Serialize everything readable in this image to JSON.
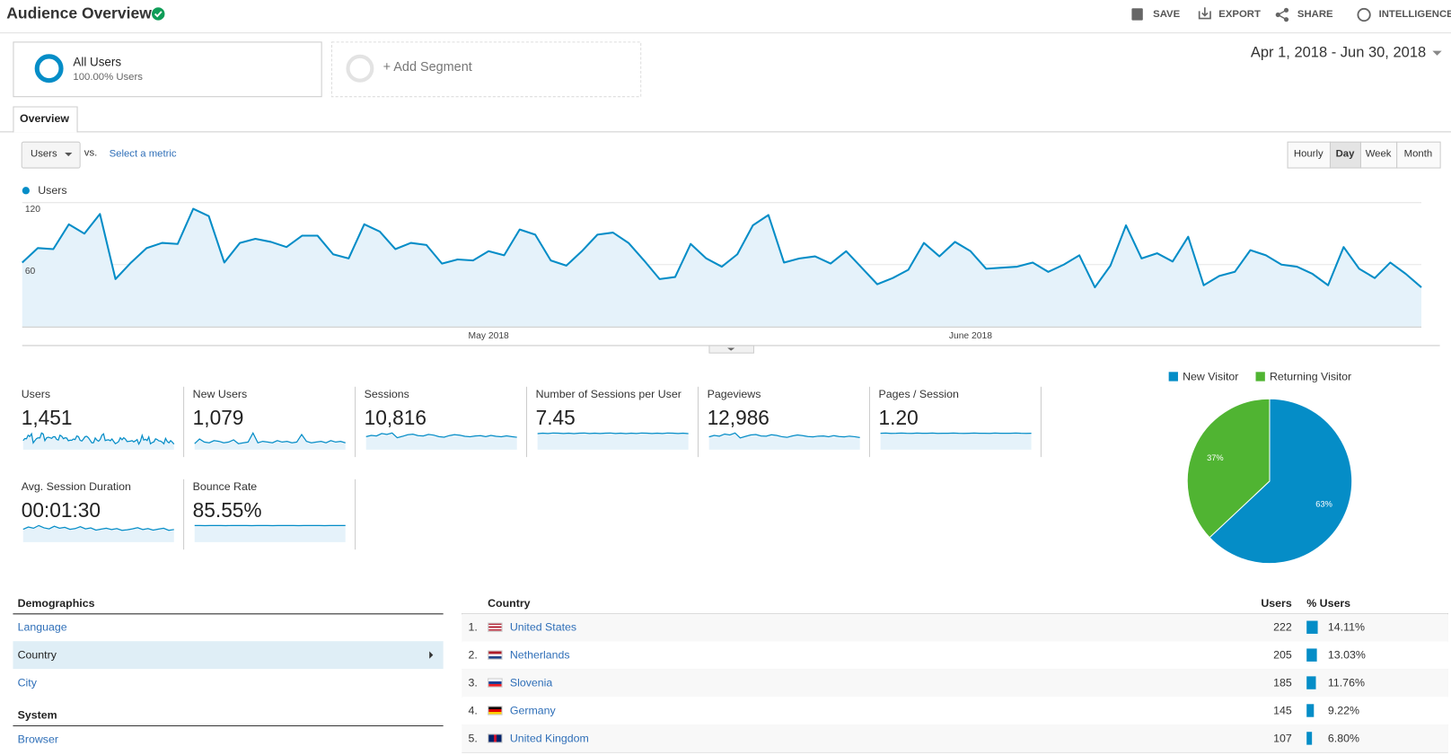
{
  "header": {
    "title": "Audience Overview",
    "actions": [
      "SAVE",
      "EXPORT",
      "SHARE",
      "INTELLIGENCE"
    ]
  },
  "segments": {
    "active": {
      "name": "All Users",
      "detail": "100.00% Users"
    },
    "add": "+ Add Segment"
  },
  "date_range": "Apr 1, 2018 - Jun 30, 2018",
  "tabs": [
    "Overview"
  ],
  "metric_picker": {
    "metric": "Users",
    "vs": "vs.",
    "compare": "Select a metric"
  },
  "granularity": {
    "options": [
      "Hourly",
      "Day",
      "Week",
      "Month"
    ],
    "selected": "Day"
  },
  "chart_data": [
    {
      "type": "line",
      "categories": [
        null,
        null,
        null,
        null,
        null,
        null,
        null,
        null,
        null,
        null,
        null,
        null,
        null,
        null,
        null,
        null,
        null,
        null,
        null,
        null,
        null,
        null,
        null,
        null,
        null,
        null,
        null,
        null,
        null,
        null,
        "May 2018",
        null,
        null,
        null,
        null,
        null,
        null,
        null,
        null,
        null,
        null,
        null,
        null,
        null,
        null,
        null,
        null,
        null,
        null,
        null,
        null,
        null,
        null,
        null,
        null,
        null,
        null,
        null,
        null,
        null,
        null,
        "June 2018",
        null,
        null,
        null,
        null,
        null,
        null,
        null,
        null,
        null,
        null,
        null,
        null,
        null,
        null,
        null,
        null,
        null,
        null,
        null,
        null,
        null,
        null,
        null,
        null,
        null,
        null,
        null,
        null,
        null
      ],
      "series": [
        {
          "name": "Users",
          "color": "#058dc7",
          "values": [
            62,
            76,
            75,
            99,
            90,
            109,
            46,
            62,
            76,
            81,
            80,
            114,
            107,
            62,
            81,
            85,
            82,
            77,
            88,
            88,
            70,
            66,
            99,
            92,
            75,
            81,
            79,
            61,
            65,
            64,
            73,
            69,
            94,
            89,
            64,
            59,
            73,
            89,
            91,
            81,
            64,
            46,
            48,
            80,
            66,
            58,
            70,
            98,
            108,
            62,
            66,
            68,
            61,
            73,
            57,
            41,
            47,
            55,
            81,
            68,
            82,
            73,
            56,
            57,
            58,
            62,
            53,
            60,
            69,
            38,
            59,
            98,
            66,
            71,
            63,
            87,
            40,
            49,
            53,
            74,
            69,
            60,
            58,
            51,
            40,
            77,
            56,
            47,
            62,
            51,
            38
          ]
        }
      ],
      "ylim": [
        0,
        120
      ],
      "yticks": [
        60,
        120
      ],
      "grid": true,
      "area": true
    },
    {
      "type": "pie",
      "categories": [
        "New Visitor",
        "Returning Visitor"
      ],
      "values": [
        63,
        37
      ],
      "value_labels": [
        "63%",
        "37%"
      ],
      "colors": [
        "#058dc7",
        "#50b432"
      ],
      "legend": "top"
    }
  ],
  "metrics": [
    {
      "label": "Users",
      "value": "1,451"
    },
    {
      "label": "New Users",
      "value": "1,079",
      "sparkline": [
        8,
        14,
        10,
        9,
        12,
        11,
        9,
        10,
        13,
        8,
        9,
        10,
        22,
        9,
        11,
        10,
        9,
        12,
        10,
        11,
        9,
        10,
        20,
        11,
        9,
        10,
        11,
        9,
        12,
        10,
        11,
        9
      ]
    },
    {
      "label": "Sessions",
      "value": "10,816",
      "sparkline": [
        110,
        120,
        115,
        135,
        128,
        140,
        100,
        112,
        125,
        130,
        118,
        115,
        128,
        122,
        110,
        105,
        118,
        126,
        121,
        112,
        108,
        115,
        118,
        110,
        120,
        112,
        108,
        116,
        110,
        104
      ]
    },
    {
      "label": "Number of Sessions per User",
      "value": "7.45",
      "sparkline": [
        7.3,
        7.5,
        7.4,
        7.6,
        7.5,
        7.4,
        7.5,
        7.3,
        7.5,
        7.6,
        7.4,
        7.5,
        7.4,
        7.5,
        7.6,
        7.4,
        7.5,
        7.3,
        7.5,
        7.4,
        7.6,
        7.5,
        7.4,
        7.5,
        7.4,
        7.6,
        7.5,
        7.4,
        7.5,
        7.3
      ]
    },
    {
      "label": "Pageviews",
      "value": "12,986",
      "sparkline": [
        130,
        145,
        138,
        160,
        150,
        170,
        120,
        135,
        150,
        155,
        140,
        138,
        152,
        145,
        132,
        126,
        140,
        150,
        144,
        134,
        130,
        138,
        140,
        132,
        144,
        134,
        130,
        138,
        132,
        124
      ]
    },
    {
      "label": "Pages / Session",
      "value": "1.20",
      "sparkline": [
        1.2,
        1.21,
        1.19,
        1.2,
        1.22,
        1.2,
        1.19,
        1.21,
        1.2,
        1.2,
        1.21,
        1.19,
        1.2,
        1.2,
        1.22,
        1.2,
        1.19,
        1.2,
        1.21,
        1.2,
        1.2,
        1.19,
        1.21,
        1.2,
        1.2,
        1.2,
        1.22,
        1.2,
        1.19,
        1.2
      ]
    },
    {
      "label": "Avg. Session Duration",
      "value": "00:01:30",
      "sparkline": [
        85,
        100,
        92,
        110,
        95,
        88,
        105,
        92,
        98,
        85,
        90,
        102,
        88,
        94,
        80,
        86,
        92,
        84,
        90,
        78,
        82,
        88,
        96,
        84,
        90,
        80,
        86,
        92,
        78,
        84
      ]
    },
    {
      "label": "Bounce Rate",
      "value": "85.55%",
      "sparkline": [
        85.5,
        85.6,
        85.4,
        85.5,
        85.7,
        85.5,
        85.4,
        85.6,
        85.5,
        85.5,
        85.6,
        85.4,
        85.5,
        85.6,
        85.5,
        85.4,
        85.5,
        85.6,
        85.5,
        85.5,
        85.4,
        85.6,
        85.5,
        85.5,
        85.6,
        85.4,
        85.5,
        85.5,
        85.6,
        85.5
      ]
    }
  ],
  "demographics": {
    "title": "Demographics",
    "items": [
      "Language",
      "Country",
      "City"
    ],
    "selected": "Country"
  },
  "system": {
    "title": "System",
    "items": [
      "Browser"
    ]
  },
  "country_table": {
    "headers": [
      "Country",
      "Users",
      "% Users"
    ],
    "rows": [
      {
        "rank": "1.",
        "country": "United States",
        "users": 222,
        "share": 14.11,
        "share_label": "14.11%"
      },
      {
        "rank": "2.",
        "country": "Netherlands",
        "users": 205,
        "share": 13.03,
        "share_label": "13.03%"
      },
      {
        "rank": "3.",
        "country": "Slovenia",
        "users": 185,
        "share": 11.76,
        "share_label": "11.76%"
      },
      {
        "rank": "4.",
        "country": "Germany",
        "users": 145,
        "share": 9.22,
        "share_label": "9.22%"
      },
      {
        "rank": "5.",
        "country": "United Kingdom",
        "users": 107,
        "share": 6.8,
        "share_label": "6.80%"
      }
    ]
  }
}
